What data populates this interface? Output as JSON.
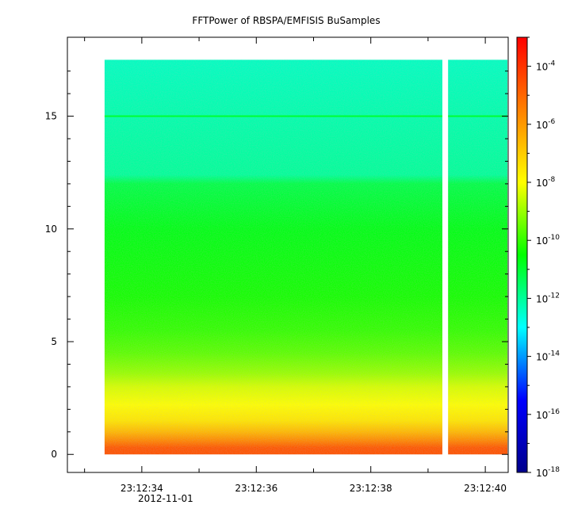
{
  "chart_data": {
    "type": "heatmap",
    "title": "FFTPower of RBSPA/EMFISIS  BuSamples",
    "xlabel": "",
    "ylabel": "",
    "x_ticks": [
      "23:12:34",
      "23:12:36",
      "23:12:38",
      "23:12:40"
    ],
    "x_date_label": "2012-11-01",
    "y_ticks": [
      0,
      5,
      10,
      15
    ],
    "ylim": [
      -0.8,
      18.5
    ],
    "xlim_seconds": [
      32.7,
      40.4
    ],
    "data_x_range_seconds": [
      33.35,
      40.4
    ],
    "data_y_range": [
      0,
      17.5
    ],
    "data_gap_seconds": [
      39.25,
      39.35
    ],
    "grid": false,
    "colorbar": {
      "scale": "log",
      "range": [
        "1e-18",
        "1e-3"
      ],
      "tick_labels": [
        {
          "base": "10",
          "exp": "-4"
        },
        {
          "base": "10",
          "exp": "-6"
        },
        {
          "base": "10",
          "exp": "-8"
        },
        {
          "base": "10",
          "exp": "-10"
        },
        {
          "base": "10",
          "exp": "-12"
        },
        {
          "base": "10",
          "exp": "-14"
        },
        {
          "base": "10",
          "exp": "-16"
        },
        {
          "base": "10",
          "exp": "-18"
        }
      ],
      "colors": [
        "#00008b",
        "#0000ff",
        "#00ffff",
        "#00ff00",
        "#ffff00",
        "#ff8000",
        "#ff0000"
      ]
    },
    "power_profile": [
      {
        "y": 0.1,
        "log_power": -4.6
      },
      {
        "y": 0.3,
        "log_power": -4.7
      },
      {
        "y": 0.6,
        "log_power": -5.6
      },
      {
        "y": 1.0,
        "log_power": -6.6
      },
      {
        "y": 1.5,
        "log_power": -7.5
      },
      {
        "y": 2.2,
        "log_power": -8.0
      },
      {
        "y": 3.0,
        "log_power": -8.4
      },
      {
        "y": 3.6,
        "log_power": -9.0
      },
      {
        "y": 4.5,
        "log_power": -9.6
      },
      {
        "y": 5.5,
        "log_power": -10.0
      },
      {
        "y": 7.0,
        "log_power": -10.3
      },
      {
        "y": 10.0,
        "log_power": -10.7
      },
      {
        "y": 12.0,
        "log_power": -11.2
      },
      {
        "y": 12.4,
        "log_power": -12.0
      },
      {
        "y": 15.0,
        "log_power": -12.2
      },
      {
        "y": 17.5,
        "log_power": -12.4
      }
    ],
    "line_feature": {
      "y": 15.0,
      "log_power": -11.0
    }
  }
}
